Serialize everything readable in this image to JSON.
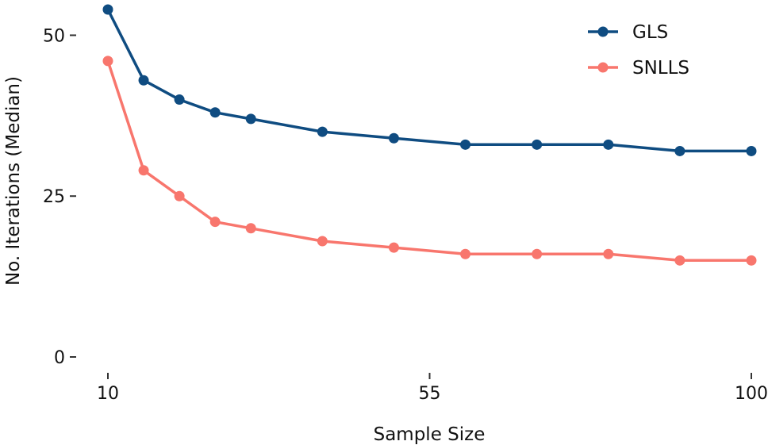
{
  "chart_data": {
    "type": "line",
    "xlabel": "Sample Size",
    "ylabel": "No. Iterations (Median)",
    "x": [
      10,
      15,
      20,
      25,
      30,
      40,
      50,
      60,
      70,
      80,
      90,
      100
    ],
    "series": [
      {
        "name": "GLS",
        "color": "#0f4c81",
        "values": [
          54,
          43,
          40,
          38,
          37,
          35,
          34,
          33,
          33,
          33,
          32,
          32
        ]
      },
      {
        "name": "SNLLS",
        "color": "#f8766d",
        "values": [
          46,
          29,
          25,
          21,
          20,
          18,
          17,
          16,
          16,
          16,
          15,
          15
        ]
      }
    ],
    "x_ticks": [
      {
        "value": 10,
        "label": "10"
      },
      {
        "value": 55,
        "label": "55"
      },
      {
        "value": 100,
        "label": "100"
      }
    ],
    "y_ticks": [
      {
        "value": 0,
        "label": "0"
      },
      {
        "value": 25,
        "label": "25"
      },
      {
        "value": 50,
        "label": "50"
      }
    ],
    "xlim": [
      10,
      100
    ],
    "ylim": [
      0,
      54
    ],
    "grid": false,
    "legend_position": "top-right"
  }
}
